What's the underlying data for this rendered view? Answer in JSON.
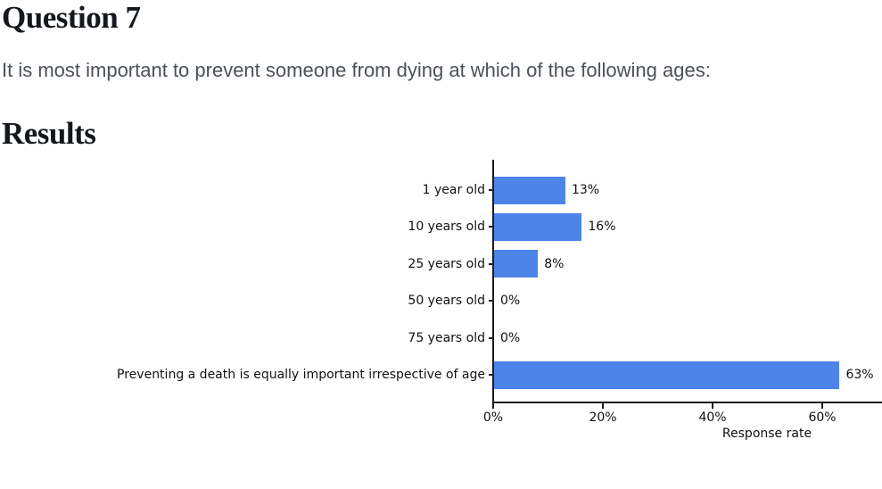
{
  "header": {
    "title": "Question 7",
    "question": "It is most important to prevent someone from dying at which of the following ages:"
  },
  "results": {
    "title": "Results"
  },
  "chart_data": {
    "type": "bar",
    "orientation": "horizontal",
    "title": "",
    "categories": [
      "1 year old",
      "10 years old",
      "25 years old",
      "50 years old",
      "75 years old",
      "Preventing a death is equally important irrespective of age"
    ],
    "values": [
      13,
      16,
      8,
      0,
      0,
      63
    ],
    "value_labels": [
      "13%",
      "16%",
      "8%",
      "0%",
      "0%",
      "63%"
    ],
    "xlabel": "Response rate",
    "ylabel": "",
    "x_tick_labels": [
      "0%",
      "20%",
      "40%",
      "60%"
    ],
    "x_tick_values": [
      0,
      20,
      40,
      60
    ],
    "xlim": [
      0,
      70.8
    ],
    "grid": false,
    "legend_position": "none",
    "bar_color": "#4c84e8",
    "axis_color": "#1c1c1c",
    "text_color": "#111111"
  }
}
